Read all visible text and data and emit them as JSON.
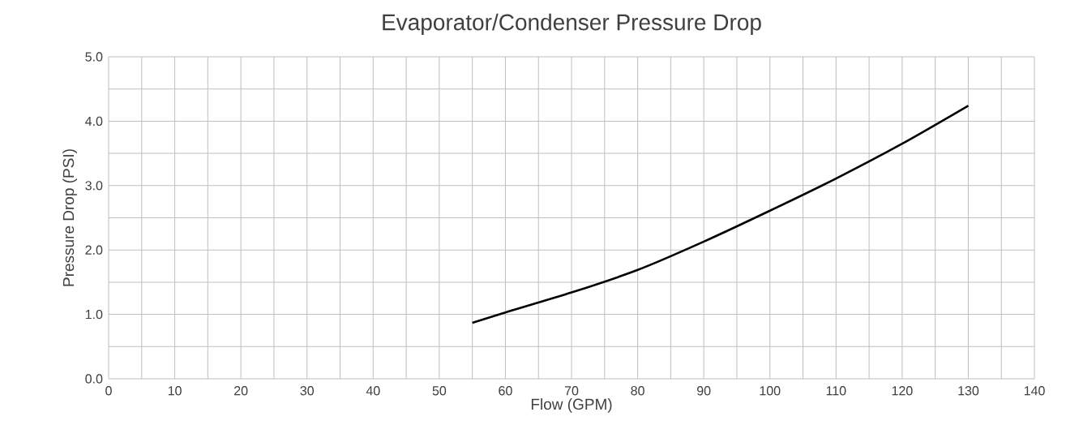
{
  "chart_data": {
    "type": "line",
    "title": "Evaporator/Condenser Pressure Drop",
    "xlabel": "Flow (GPM)",
    "ylabel": "Pressure Drop (PSI)",
    "x": [
      55,
      60,
      70,
      80,
      90,
      100,
      110,
      120,
      130
    ],
    "series": [
      {
        "color": "#000000",
        "values": [
          0.87,
          1.03,
          1.34,
          1.69,
          2.13,
          2.61,
          3.11,
          3.65,
          4.24
        ]
      }
    ],
    "xlim": [
      0,
      140
    ],
    "xticks": [
      0,
      10,
      20,
      30,
      40,
      50,
      60,
      70,
      80,
      90,
      100,
      110,
      120,
      130,
      140
    ],
    "ylim": [
      0,
      5
    ],
    "yticks": [
      {
        "value": 0,
        "label": "0.0"
      },
      {
        "value": 1,
        "label": "1.0"
      },
      {
        "value": 2,
        "label": "2.0"
      },
      {
        "value": 3,
        "label": "3.0"
      },
      {
        "value": 4,
        "label": "4.0"
      },
      {
        "value": 5,
        "label": "5.0"
      }
    ],
    "grid": true,
    "marker": "none",
    "line_style": "solid"
  }
}
